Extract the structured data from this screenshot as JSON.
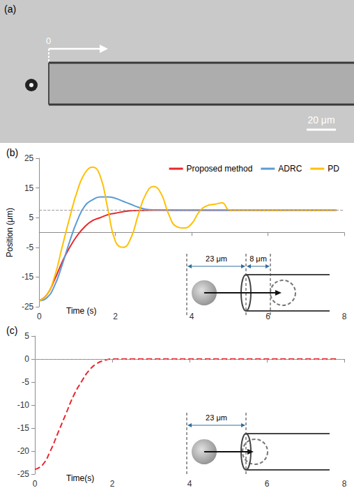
{
  "panel_a": {
    "label": "(a)",
    "origin_label": "0",
    "scale_bar": "20 μm"
  },
  "chart_data": [
    {
      "type": "line",
      "title": "(b)",
      "y_label": "Position (μm)",
      "x_label": "Time (s)",
      "xlim": [
        0,
        8
      ],
      "xticks": [
        0,
        2,
        4,
        6,
        8
      ],
      "ylim": [
        -25,
        25
      ],
      "yticks": [
        -25,
        -15,
        -5,
        5,
        15,
        25
      ],
      "grid": false,
      "legend": "top-right",
      "target": 7.5,
      "annotations": [
        "23 μm",
        "8 μm"
      ],
      "series": [
        {
          "name": "Proposed method",
          "color": "#e8262b",
          "x": [
            0,
            0.2,
            0.4,
            0.6,
            0.8,
            1.0,
            1.2,
            1.4,
            1.6,
            1.8,
            2.0,
            2.2,
            2.5,
            3.0,
            4.0,
            6.0,
            7.8
          ],
          "values": [
            -23,
            -21,
            -16,
            -10,
            -5,
            -1,
            2,
            4,
            5,
            6,
            6.5,
            7,
            7.4,
            7.5,
            7.5,
            7.5,
            7.5
          ]
        },
        {
          "name": "ADRC",
          "color": "#5b9bd5",
          "x": [
            0,
            0.2,
            0.4,
            0.6,
            0.8,
            1.0,
            1.2,
            1.4,
            1.6,
            1.8,
            2.0,
            2.2,
            2.4,
            2.6,
            2.8,
            3.0,
            4.0,
            7.8
          ],
          "values": [
            -23,
            -22,
            -18,
            -11,
            -3,
            4,
            9,
            11,
            12,
            12,
            11.5,
            10.5,
            9.5,
            8.5,
            7.8,
            7.6,
            7.5,
            7.5
          ]
        },
        {
          "name": "PD",
          "color": "#ffc000",
          "x": [
            0,
            0.2,
            0.4,
            0.6,
            0.8,
            1.0,
            1.2,
            1.4,
            1.6,
            1.8,
            2.0,
            2.2,
            2.4,
            2.6,
            2.8,
            3.0,
            3.2,
            3.4,
            3.6,
            3.8,
            4.0,
            4.2,
            4.4,
            4.6,
            4.8,
            5.0,
            6.0,
            7.8
          ],
          "values": [
            -23,
            -21,
            -15,
            -5,
            5,
            14,
            20,
            22,
            19,
            8,
            -3,
            -5,
            -2,
            6,
            13,
            15.5,
            13,
            6,
            2,
            1.5,
            3,
            7,
            9,
            9.5,
            10,
            7.5,
            7.5,
            7.5
          ]
        }
      ]
    },
    {
      "type": "line",
      "title": "(c)",
      "x_label": "Time(s)",
      "xlim": [
        0,
        8
      ],
      "xticks": [
        0,
        2,
        4,
        6,
        8
      ],
      "ylim": [
        -25,
        5
      ],
      "yticks": [
        -25,
        -20,
        -15,
        -10,
        -5,
        0,
        5
      ],
      "grid": false,
      "target": 0,
      "annotations": [
        "23 μm"
      ],
      "series": [
        {
          "color": "#e8262b",
          "line_style": "dashed",
          "x": [
            0,
            0.2,
            0.4,
            0.6,
            0.8,
            1.0,
            1.2,
            1.4,
            1.6,
            1.8,
            2.0,
            3.0,
            5.0,
            7.8
          ],
          "values": [
            -24,
            -23,
            -20,
            -16,
            -12,
            -8,
            -5,
            -2.5,
            -1,
            -0.3,
            0,
            0,
            0,
            0
          ]
        }
      ]
    }
  ]
}
